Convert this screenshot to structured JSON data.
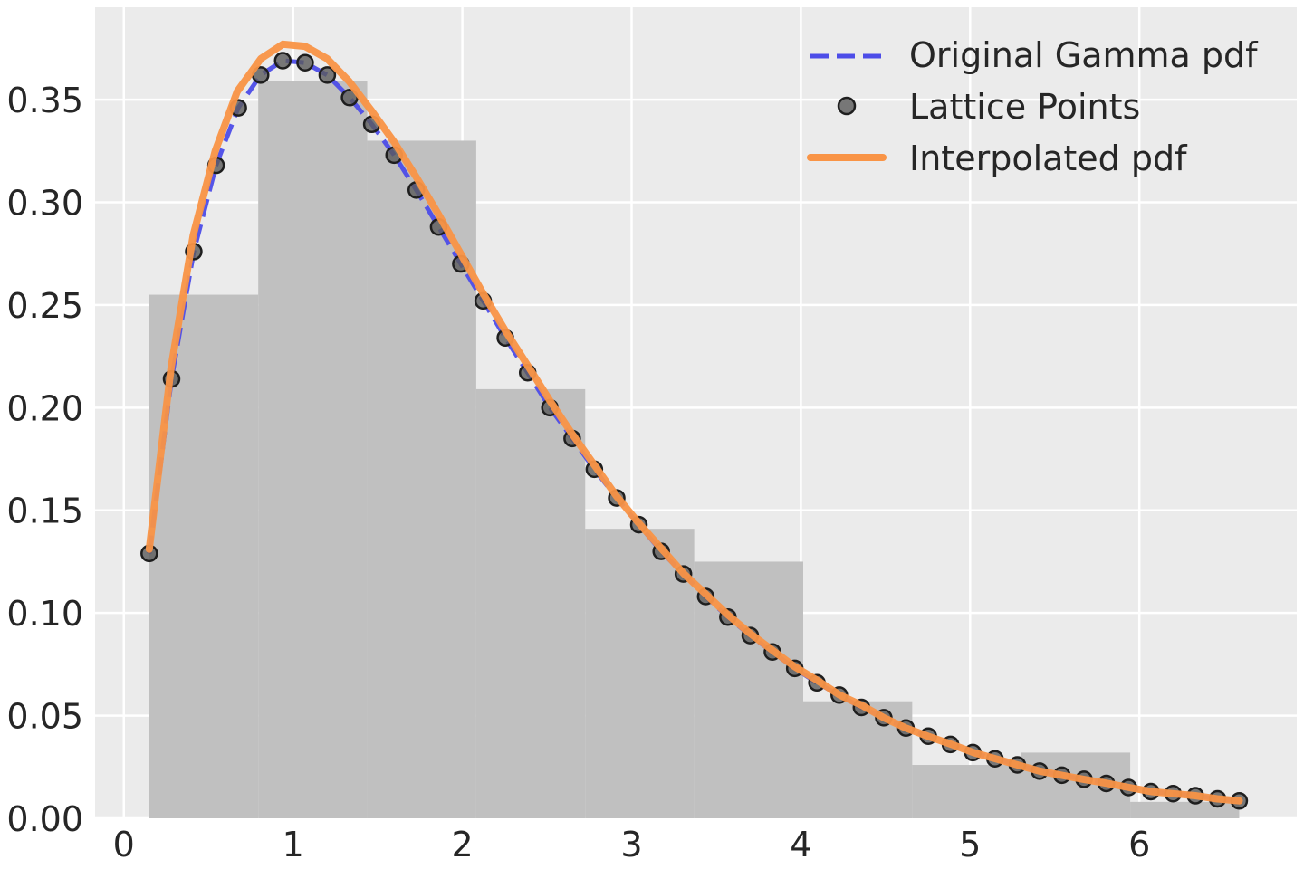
{
  "chart_data": {
    "type": "line",
    "title": "",
    "xlabel": "",
    "ylabel": "",
    "xlim": [
      -0.17,
      6.93
    ],
    "ylim": [
      0,
      0.395
    ],
    "x_ticks": [
      0,
      1,
      2,
      3,
      4,
      5,
      6
    ],
    "x_tick_labels": [
      "0",
      "1",
      "2",
      "3",
      "4",
      "5",
      "6"
    ],
    "y_ticks": [
      0,
      0.05,
      0.1,
      0.15,
      0.2,
      0.25,
      0.3,
      0.35
    ],
    "y_tick_labels": [
      "0.00",
      "0.05",
      "0.10",
      "0.15",
      "0.20",
      "0.25",
      "0.30",
      "0.35"
    ],
    "grid": true,
    "legend_position": "top-right",
    "colors": {
      "background": "#ebebeb",
      "grid": "#ffffff",
      "histogram": "#c0c0c0",
      "gamma": "#4d4de8",
      "lattice": "#5a5a5a",
      "interpolated": "#f99446",
      "text": "#262626"
    },
    "histogram": {
      "edges": [
        0.15,
        0.794,
        1.438,
        2.082,
        2.726,
        3.37,
        4.014,
        4.658,
        5.302,
        5.946,
        6.59
      ],
      "values": [
        0.255,
        0.359,
        0.33,
        0.209,
        0.141,
        0.125,
        0.057,
        0.026,
        0.032,
        0.008
      ]
    },
    "series": [
      {
        "name": "Original Gamma pdf",
        "style": "dashed",
        "x": [
          0.15,
          0.282,
          0.413,
          0.545,
          0.676,
          0.808,
          0.939,
          1.071,
          1.202,
          1.334,
          1.465,
          1.597,
          1.728,
          1.86,
          1.991,
          2.123,
          2.254,
          2.386,
          2.517,
          2.649,
          2.78,
          2.912,
          3.043,
          3.175,
          3.306,
          3.438,
          3.569,
          3.701,
          3.832,
          3.964,
          4.095,
          4.227,
          4.358,
          4.49,
          4.621,
          4.753,
          4.884,
          5.016,
          5.147,
          5.279,
          5.41,
          5.542,
          5.673,
          5.805,
          5.936,
          6.068,
          6.199,
          6.331,
          6.462,
          6.59
        ],
        "y": [
          0.129,
          0.214,
          0.276,
          0.318,
          0.346,
          0.362,
          0.369,
          0.368,
          0.362,
          0.351,
          0.338,
          0.323,
          0.306,
          0.288,
          0.27,
          0.252,
          0.234,
          0.217,
          0.2,
          0.185,
          0.17,
          0.156,
          0.143,
          0.13,
          0.119,
          0.108,
          0.098,
          0.089,
          0.081,
          0.073,
          0.066,
          0.06,
          0.054,
          0.049,
          0.044,
          0.04,
          0.036,
          0.032,
          0.029,
          0.026,
          0.023,
          0.021,
          0.019,
          0.017,
          0.015,
          0.013,
          0.012,
          0.011,
          0.0095,
          0.0085
        ]
      },
      {
        "name": "Lattice Points",
        "style": "markers",
        "x": [
          0.15,
          0.282,
          0.413,
          0.545,
          0.676,
          0.808,
          0.939,
          1.071,
          1.202,
          1.334,
          1.465,
          1.597,
          1.728,
          1.86,
          1.991,
          2.123,
          2.254,
          2.386,
          2.517,
          2.649,
          2.78,
          2.912,
          3.043,
          3.175,
          3.306,
          3.438,
          3.569,
          3.701,
          3.832,
          3.964,
          4.095,
          4.227,
          4.358,
          4.49,
          4.621,
          4.753,
          4.884,
          5.016,
          5.147,
          5.279,
          5.41,
          5.542,
          5.673,
          5.805,
          5.936,
          6.068,
          6.199,
          6.331,
          6.462,
          6.59
        ],
        "y": [
          0.129,
          0.214,
          0.276,
          0.318,
          0.346,
          0.362,
          0.369,
          0.368,
          0.362,
          0.351,
          0.338,
          0.323,
          0.306,
          0.288,
          0.27,
          0.252,
          0.234,
          0.217,
          0.2,
          0.185,
          0.17,
          0.156,
          0.143,
          0.13,
          0.119,
          0.108,
          0.098,
          0.089,
          0.081,
          0.073,
          0.066,
          0.06,
          0.054,
          0.049,
          0.044,
          0.04,
          0.036,
          0.032,
          0.029,
          0.026,
          0.023,
          0.021,
          0.019,
          0.017,
          0.015,
          0.013,
          0.012,
          0.011,
          0.0095,
          0.0085
        ]
      },
      {
        "name": "Interpolated pdf",
        "style": "solid",
        "x": [
          0.15,
          0.28,
          0.41,
          0.54,
          0.67,
          0.81,
          0.94,
          1.07,
          1.2,
          1.33,
          1.46,
          1.6,
          1.73,
          1.86,
          1.99,
          2.12,
          2.25,
          2.39,
          2.52,
          2.65,
          2.78,
          2.91,
          3.04,
          3.18,
          3.31,
          3.44,
          3.57,
          3.7,
          3.83,
          3.96,
          4.1,
          4.23,
          4.36,
          4.49,
          4.62,
          4.75,
          4.89,
          5.02,
          5.15,
          5.28,
          5.41,
          5.54,
          5.67,
          5.81,
          5.94,
          6.07,
          6.2,
          6.33,
          6.46,
          6.59
        ],
        "y": [
          0.131,
          0.22,
          0.284,
          0.325,
          0.354,
          0.37,
          0.377,
          0.376,
          0.37,
          0.359,
          0.345,
          0.329,
          0.312,
          0.294,
          0.275,
          0.256,
          0.238,
          0.22,
          0.203,
          0.187,
          0.172,
          0.157,
          0.144,
          0.131,
          0.119,
          0.109,
          0.099,
          0.09,
          0.082,
          0.074,
          0.067,
          0.06,
          0.055,
          0.049,
          0.044,
          0.04,
          0.036,
          0.032,
          0.029,
          0.026,
          0.023,
          0.021,
          0.019,
          0.017,
          0.015,
          0.013,
          0.012,
          0.011,
          0.0095,
          0.0085
        ]
      }
    ]
  }
}
